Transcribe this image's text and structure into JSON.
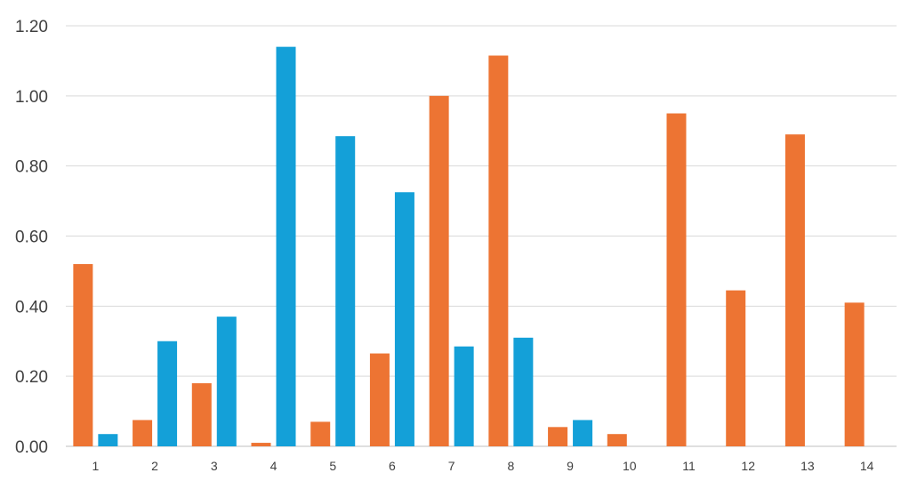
{
  "chart_data": {
    "type": "bar",
    "title": "",
    "xlabel": "",
    "ylabel": "",
    "categories": [
      "1",
      "2",
      "3",
      "4",
      "5",
      "6",
      "7",
      "8",
      "9",
      "10",
      "11",
      "12",
      "13",
      "14"
    ],
    "series": [
      {
        "color": "#ED7433",
        "values": [
          0.52,
          0.075,
          0.18,
          0.01,
          0.07,
          0.265,
          1.0,
          1.115,
          0.055,
          0.035,
          0.95,
          0.445,
          0.89,
          0.41
        ]
      },
      {
        "color": "#14A0D8",
        "values": [
          0.035,
          0.3,
          0.37,
          1.14,
          0.885,
          0.725,
          0.285,
          0.31,
          0.075,
          0,
          0,
          0,
          0,
          0
        ]
      }
    ],
    "ylim": [
      0,
      1.2
    ],
    "y_ticks": [
      "0.00",
      "0.20",
      "0.40",
      "0.60",
      "0.80",
      "1.00",
      "1.20"
    ],
    "grid": true,
    "legend": "none"
  }
}
